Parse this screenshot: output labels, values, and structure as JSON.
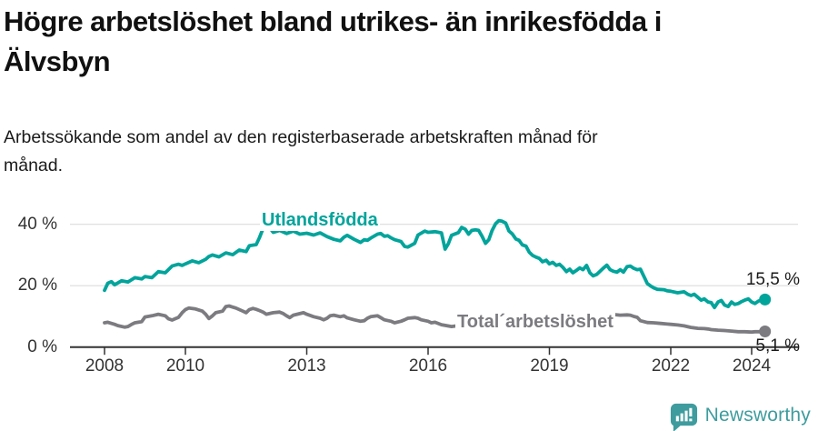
{
  "title": "Högre arbetslöshet bland utrikes- än inrikesfödda i\nÄlvsbyn",
  "subtitle": "Arbetssökande som andel av den registerbaserade arbetskraften månad för\nmånad.",
  "footer": {
    "brand": "Newsworthy",
    "logo_icon": "newsworthy-speech-bubble-bar-chart"
  },
  "colors": {
    "accent_teal": "#00a49b",
    "series_gray": "#7b7b80",
    "grid": "#dcdcdc",
    "axis": "#333333",
    "title_text": "#111111",
    "tick_text": "#333333",
    "logo_teal": "#3e9c9e"
  },
  "chart_data": {
    "type": "line",
    "title": "Högre arbetslöshet bland utrikes- än inrikesfödda i Älvsbyn",
    "subtitle": "Arbetssökande som andel av den registerbaserade arbetskraften månad för månad.",
    "unit": "%",
    "grid": "horizontal",
    "legend": "inline-labels",
    "x_axis": {
      "ticks": [
        2008,
        2010,
        2013,
        2016,
        2019,
        2022,
        2024
      ],
      "tick_labels": [
        "2008",
        "2010",
        "2013",
        "2016",
        "2019",
        "2022",
        "2024"
      ],
      "range": [
        2007.2,
        2025.2
      ]
    },
    "y_axis": {
      "ticks": [
        0,
        20,
        40
      ],
      "tick_labels": [
        "0 %",
        "20 %",
        "40 %"
      ],
      "range": [
        0,
        44
      ]
    },
    "series": [
      {
        "name": "Utlandsfödda",
        "color": "#00a49b",
        "end_value": 15.5,
        "end_label": "15,5 %",
        "points": [
          [
            2008.0,
            18.5
          ],
          [
            2008.08,
            20.8
          ],
          [
            2008.17,
            21.3
          ],
          [
            2008.25,
            20.3
          ],
          [
            2008.42,
            21.6
          ],
          [
            2008.58,
            21.2
          ],
          [
            2008.75,
            22.6
          ],
          [
            2008.92,
            22.2
          ],
          [
            2009.0,
            23.0
          ],
          [
            2009.17,
            22.6
          ],
          [
            2009.33,
            24.6
          ],
          [
            2009.5,
            24.2
          ],
          [
            2009.67,
            26.4
          ],
          [
            2009.83,
            27.0
          ],
          [
            2009.92,
            26.6
          ],
          [
            2010.0,
            27.1
          ],
          [
            2010.17,
            28.1
          ],
          [
            2010.33,
            27.5
          ],
          [
            2010.5,
            28.6
          ],
          [
            2010.58,
            29.5
          ],
          [
            2010.67,
            30.0
          ],
          [
            2010.83,
            29.4
          ],
          [
            2011.0,
            30.7
          ],
          [
            2011.17,
            30.1
          ],
          [
            2011.33,
            31.6
          ],
          [
            2011.5,
            31.1
          ],
          [
            2011.58,
            33.0
          ],
          [
            2011.75,
            33.4
          ],
          [
            2011.83,
            35.6
          ],
          [
            2011.92,
            38.6
          ],
          [
            2012.0,
            40.3
          ],
          [
            2012.08,
            39.0
          ],
          [
            2012.17,
            37.4
          ],
          [
            2012.33,
            38.0
          ],
          [
            2012.5,
            37.0
          ],
          [
            2012.67,
            37.8
          ],
          [
            2012.83,
            36.8
          ],
          [
            2013.0,
            37.1
          ],
          [
            2013.17,
            36.5
          ],
          [
            2013.33,
            37.2
          ],
          [
            2013.5,
            36.0
          ],
          [
            2013.67,
            35.1
          ],
          [
            2013.83,
            34.6
          ],
          [
            2013.92,
            35.8
          ],
          [
            2014.0,
            36.4
          ],
          [
            2014.17,
            35.1
          ],
          [
            2014.33,
            34.1
          ],
          [
            2014.42,
            35.0
          ],
          [
            2014.5,
            34.8
          ],
          [
            2014.58,
            35.5
          ],
          [
            2014.75,
            36.8
          ],
          [
            2014.83,
            37.0
          ],
          [
            2014.92,
            36.1
          ],
          [
            2015.0,
            36.3
          ],
          [
            2015.08,
            35.6
          ],
          [
            2015.17,
            35.0
          ],
          [
            2015.33,
            34.4
          ],
          [
            2015.42,
            32.8
          ],
          [
            2015.5,
            32.6
          ],
          [
            2015.67,
            33.8
          ],
          [
            2015.75,
            36.5
          ],
          [
            2015.92,
            37.8
          ],
          [
            2016.0,
            37.4
          ],
          [
            2016.17,
            37.6
          ],
          [
            2016.33,
            37.2
          ],
          [
            2016.42,
            31.9
          ],
          [
            2016.5,
            33.7
          ],
          [
            2016.58,
            36.4
          ],
          [
            2016.75,
            37.3
          ],
          [
            2016.83,
            39.0
          ],
          [
            2016.92,
            38.4
          ],
          [
            2017.0,
            36.8
          ],
          [
            2017.08,
            38.0
          ],
          [
            2017.17,
            38.2
          ],
          [
            2017.25,
            38.0
          ],
          [
            2017.33,
            36.2
          ],
          [
            2017.42,
            33.8
          ],
          [
            2017.5,
            35.0
          ],
          [
            2017.58,
            37.9
          ],
          [
            2017.67,
            40.2
          ],
          [
            2017.75,
            41.2
          ],
          [
            2017.83,
            41.0
          ],
          [
            2017.92,
            40.4
          ],
          [
            2018.0,
            37.8
          ],
          [
            2018.08,
            36.9
          ],
          [
            2018.17,
            35.2
          ],
          [
            2018.25,
            34.8
          ],
          [
            2018.33,
            33.3
          ],
          [
            2018.42,
            32.9
          ],
          [
            2018.5,
            30.9
          ],
          [
            2018.58,
            29.9
          ],
          [
            2018.67,
            29.3
          ],
          [
            2018.75,
            28.9
          ],
          [
            2018.83,
            27.8
          ],
          [
            2018.92,
            28.3
          ],
          [
            2019.0,
            27.1
          ],
          [
            2019.08,
            27.6
          ],
          [
            2019.17,
            26.6
          ],
          [
            2019.25,
            27.0
          ],
          [
            2019.33,
            26.0
          ],
          [
            2019.42,
            24.6
          ],
          [
            2019.5,
            25.4
          ],
          [
            2019.58,
            24.2
          ],
          [
            2019.67,
            25.0
          ],
          [
            2019.75,
            25.8
          ],
          [
            2019.83,
            25.2
          ],
          [
            2019.92,
            26.6
          ],
          [
            2020.0,
            24.2
          ],
          [
            2020.08,
            23.2
          ],
          [
            2020.17,
            23.7
          ],
          [
            2020.33,
            25.7
          ],
          [
            2020.42,
            26.7
          ],
          [
            2020.5,
            25.2
          ],
          [
            2020.58,
            24.7
          ],
          [
            2020.67,
            24.4
          ],
          [
            2020.75,
            25.2
          ],
          [
            2020.83,
            24.4
          ],
          [
            2020.92,
            26.2
          ],
          [
            2021.0,
            26.4
          ],
          [
            2021.08,
            25.7
          ],
          [
            2021.17,
            25.2
          ],
          [
            2021.25,
            25.4
          ],
          [
            2021.33,
            23.2
          ],
          [
            2021.42,
            20.7
          ],
          [
            2021.5,
            19.9
          ],
          [
            2021.58,
            19.3
          ],
          [
            2021.67,
            18.8
          ],
          [
            2021.83,
            18.7
          ],
          [
            2021.92,
            18.3
          ],
          [
            2022.0,
            18.2
          ],
          [
            2022.17,
            17.7
          ],
          [
            2022.33,
            18.0
          ],
          [
            2022.42,
            17.2
          ],
          [
            2022.5,
            16.8
          ],
          [
            2022.58,
            17.2
          ],
          [
            2022.67,
            16.2
          ],
          [
            2022.75,
            15.3
          ],
          [
            2022.83,
            15.7
          ],
          [
            2022.92,
            14.7
          ],
          [
            2023.0,
            14.5
          ],
          [
            2023.08,
            12.9
          ],
          [
            2023.17,
            14.7
          ],
          [
            2023.25,
            15.2
          ],
          [
            2023.33,
            13.7
          ],
          [
            2023.42,
            13.2
          ],
          [
            2023.5,
            14.7
          ],
          [
            2023.58,
            13.9
          ],
          [
            2023.67,
            14.2
          ],
          [
            2023.75,
            14.8
          ],
          [
            2023.83,
            15.3
          ],
          [
            2023.92,
            15.7
          ],
          [
            2024.0,
            14.7
          ],
          [
            2024.08,
            14.2
          ],
          [
            2024.17,
            15.0
          ],
          [
            2024.25,
            15.3
          ],
          [
            2024.33,
            15.5
          ]
        ]
      },
      {
        "name": "Total´arbetslöshet",
        "color": "#7b7b80",
        "end_value": 5.1,
        "end_label": "5,1 %",
        "points": [
          [
            2008.0,
            7.9
          ],
          [
            2008.08,
            8.1
          ],
          [
            2008.25,
            7.4
          ],
          [
            2008.33,
            7.0
          ],
          [
            2008.5,
            6.5
          ],
          [
            2008.58,
            6.7
          ],
          [
            2008.67,
            7.4
          ],
          [
            2008.75,
            7.9
          ],
          [
            2008.92,
            8.3
          ],
          [
            2009.0,
            9.8
          ],
          [
            2009.17,
            10.2
          ],
          [
            2009.33,
            10.7
          ],
          [
            2009.5,
            10.2
          ],
          [
            2009.58,
            9.2
          ],
          [
            2009.67,
            8.8
          ],
          [
            2009.83,
            9.7
          ],
          [
            2009.92,
            11.2
          ],
          [
            2010.0,
            12.2
          ],
          [
            2010.08,
            12.7
          ],
          [
            2010.25,
            12.4
          ],
          [
            2010.42,
            11.7
          ],
          [
            2010.5,
            10.7
          ],
          [
            2010.58,
            9.3
          ],
          [
            2010.67,
            10.2
          ],
          [
            2010.75,
            11.2
          ],
          [
            2010.92,
            11.7
          ],
          [
            2011.0,
            13.2
          ],
          [
            2011.08,
            13.4
          ],
          [
            2011.25,
            12.7
          ],
          [
            2011.42,
            11.7
          ],
          [
            2011.5,
            11.2
          ],
          [
            2011.58,
            12.2
          ],
          [
            2011.67,
            12.6
          ],
          [
            2011.75,
            12.3
          ],
          [
            2011.83,
            11.9
          ],
          [
            2011.92,
            11.4
          ],
          [
            2012.0,
            10.7
          ],
          [
            2012.17,
            11.2
          ],
          [
            2012.33,
            11.4
          ],
          [
            2012.42,
            10.9
          ],
          [
            2012.5,
            10.2
          ],
          [
            2012.58,
            9.6
          ],
          [
            2012.67,
            10.4
          ],
          [
            2012.83,
            10.9
          ],
          [
            2012.92,
            11.2
          ],
          [
            2013.0,
            10.7
          ],
          [
            2013.17,
            9.9
          ],
          [
            2013.33,
            9.4
          ],
          [
            2013.42,
            8.9
          ],
          [
            2013.5,
            9.4
          ],
          [
            2013.58,
            10.2
          ],
          [
            2013.67,
            10.4
          ],
          [
            2013.83,
            9.9
          ],
          [
            2013.92,
            10.2
          ],
          [
            2014.0,
            9.5
          ],
          [
            2014.17,
            8.9
          ],
          [
            2014.33,
            8.4
          ],
          [
            2014.42,
            8.6
          ],
          [
            2014.5,
            9.4
          ],
          [
            2014.58,
            9.9
          ],
          [
            2014.75,
            10.2
          ],
          [
            2014.83,
            9.6
          ],
          [
            2014.92,
            8.9
          ],
          [
            2015.08,
            8.4
          ],
          [
            2015.17,
            7.9
          ],
          [
            2015.33,
            8.4
          ],
          [
            2015.42,
            8.9
          ],
          [
            2015.5,
            9.4
          ],
          [
            2015.67,
            9.6
          ],
          [
            2015.75,
            9.4
          ],
          [
            2015.83,
            8.9
          ],
          [
            2016.0,
            8.4
          ],
          [
            2016.08,
            7.9
          ],
          [
            2016.17,
            8.1
          ],
          [
            2016.33,
            7.3
          ],
          [
            2016.58,
            6.7
          ],
          [
            2016.75,
            7.0
          ],
          [
            2016.92,
            7.4
          ],
          [
            2017.0,
            7.2
          ],
          [
            2017.25,
            7.6
          ],
          [
            2017.5,
            7.2
          ],
          [
            2017.75,
            6.9
          ],
          [
            2018.0,
            7.3
          ],
          [
            2018.25,
            7.0
          ],
          [
            2018.5,
            6.8
          ],
          [
            2018.75,
            7.1
          ],
          [
            2019.0,
            7.4
          ],
          [
            2019.25,
            7.2
          ],
          [
            2019.5,
            7.0
          ],
          [
            2019.75,
            7.3
          ],
          [
            2020.0,
            7.8
          ],
          [
            2020.25,
            9.5
          ],
          [
            2020.42,
            10.3
          ],
          [
            2020.58,
            10.6
          ],
          [
            2020.75,
            10.4
          ],
          [
            2020.92,
            10.5
          ],
          [
            2021.0,
            10.4
          ],
          [
            2021.08,
            10.0
          ],
          [
            2021.17,
            9.7
          ],
          [
            2021.25,
            8.6
          ],
          [
            2021.42,
            8.0
          ],
          [
            2021.58,
            7.9
          ],
          [
            2021.75,
            7.7
          ],
          [
            2021.92,
            7.5
          ],
          [
            2022.0,
            7.4
          ],
          [
            2022.17,
            7.2
          ],
          [
            2022.33,
            6.9
          ],
          [
            2022.5,
            6.4
          ],
          [
            2022.67,
            6.1
          ],
          [
            2022.83,
            6.0
          ],
          [
            2022.92,
            5.9
          ],
          [
            2023.0,
            5.7
          ],
          [
            2023.17,
            5.5
          ],
          [
            2023.33,
            5.4
          ],
          [
            2023.5,
            5.2
          ],
          [
            2023.67,
            5.0
          ],
          [
            2023.83,
            5.0
          ],
          [
            2024.0,
            4.9
          ],
          [
            2024.08,
            5.0
          ],
          [
            2024.17,
            5.0
          ],
          [
            2024.25,
            5.0
          ],
          [
            2024.33,
            5.1
          ]
        ]
      }
    ]
  }
}
